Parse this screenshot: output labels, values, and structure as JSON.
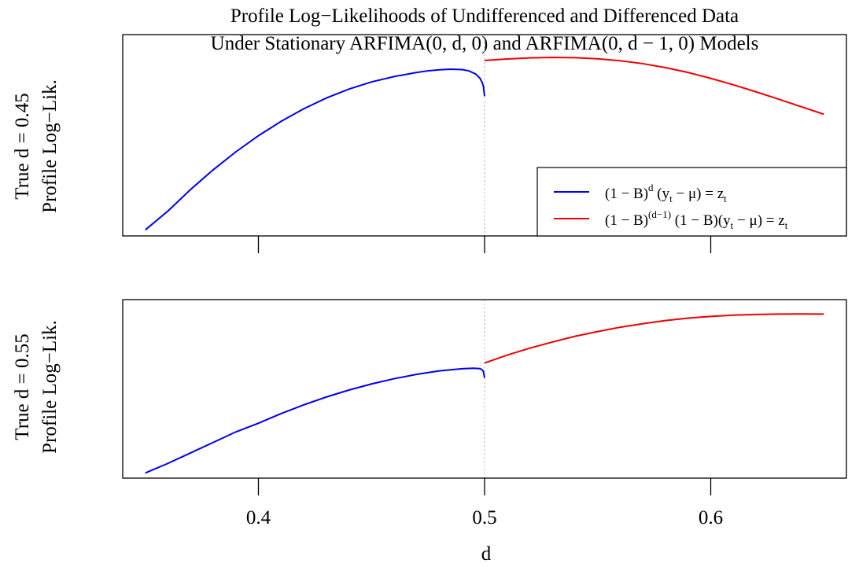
{
  "title": {
    "line1": "Profile Log−Likelihoods of Undifferenced and Differenced Data",
    "line2": "Under Stationary ARFIMA(0, d, 0) and ARFIMA(0, d − 1, 0) Models"
  },
  "colors": {
    "blue": "#0000ee",
    "red": "#ee0000",
    "divider": "#b0b0b0",
    "axis": "#000000"
  },
  "legend": {
    "blue_label": "(1 − B)^d (y_t − μ) = z_t",
    "red_label": "(1 − B)^(d−1) (1 − B)(y_t − μ) = z_t",
    "parts": {
      "blue": {
        "a": "(1 − B)",
        "sup": "d",
        "b": " (y",
        "sub1": "t",
        "c": " − μ) = z",
        "sub2": "t"
      },
      "red": {
        "a": "(1 − B)",
        "sup": "(d−1)",
        "b": " (1 − B)(y",
        "sub1": "t",
        "c": " − μ) = z",
        "sub2": "t"
      }
    }
  },
  "chart_data": [
    {
      "type": "line",
      "panel": "top",
      "ylabel_line1": "True  d = 0.45",
      "ylabel_line2": "Profile Log−Lik.",
      "xlabel": "",
      "xlim": [
        0.34,
        0.66
      ],
      "ylim": [
        0,
        1
      ],
      "xticks": [
        0.4,
        0.5,
        0.6
      ],
      "show_tick_labels": false,
      "divider_x": 0.5,
      "legend_position": "bottom-right",
      "series": [
        {
          "color": "blue",
          "x": [
            0.35,
            0.36,
            0.37,
            0.38,
            0.39,
            0.4,
            0.41,
            0.42,
            0.43,
            0.44,
            0.45,
            0.46,
            0.47,
            0.475,
            0.48,
            0.485,
            0.49,
            0.493,
            0.496,
            0.498,
            0.499,
            0.4995,
            0.5
          ],
          "y": [
            0.025,
            0.13,
            0.25,
            0.36,
            0.46,
            0.55,
            0.63,
            0.7,
            0.76,
            0.81,
            0.85,
            0.88,
            0.903,
            0.912,
            0.918,
            0.921,
            0.919,
            0.912,
            0.895,
            0.87,
            0.845,
            0.825,
            0.77
          ]
        },
        {
          "color": "red",
          "x": [
            0.5,
            0.51,
            0.52,
            0.53,
            0.54,
            0.55,
            0.56,
            0.57,
            0.58,
            0.59,
            0.6,
            0.61,
            0.62,
            0.63,
            0.64,
            0.65
          ],
          "y": [
            0.97,
            0.978,
            0.984,
            0.987,
            0.985,
            0.979,
            0.968,
            0.952,
            0.93,
            0.903,
            0.87,
            0.834,
            0.795,
            0.754,
            0.712,
            0.67
          ]
        }
      ]
    },
    {
      "type": "line",
      "panel": "bottom",
      "ylabel_line1": "True  d = 0.55",
      "ylabel_line2": "Profile Log−Lik.",
      "xlabel": "d",
      "xlim": [
        0.34,
        0.66
      ],
      "ylim": [
        0,
        1
      ],
      "xticks": [
        0.4,
        0.5,
        0.6
      ],
      "xtick_labels": [
        "0.4",
        "0.5",
        "0.6"
      ],
      "show_tick_labels": true,
      "divider_x": 0.5,
      "series": [
        {
          "color": "blue",
          "x": [
            0.35,
            0.36,
            0.37,
            0.38,
            0.39,
            0.4,
            0.41,
            0.42,
            0.43,
            0.44,
            0.45,
            0.46,
            0.47,
            0.48,
            0.49,
            0.495,
            0.498,
            0.499,
            0.4995,
            0.5
          ],
          "y": [
            0.025,
            0.08,
            0.14,
            0.2,
            0.26,
            0.31,
            0.365,
            0.415,
            0.46,
            0.5,
            0.535,
            0.565,
            0.59,
            0.61,
            0.622,
            0.625,
            0.623,
            0.615,
            0.605,
            0.57
          ]
        },
        {
          "color": "red",
          "x": [
            0.5,
            0.51,
            0.52,
            0.53,
            0.54,
            0.55,
            0.56,
            0.57,
            0.58,
            0.59,
            0.6,
            0.61,
            0.62,
            0.63,
            0.64,
            0.65
          ],
          "y": [
            0.655,
            0.7,
            0.74,
            0.775,
            0.808,
            0.835,
            0.86,
            0.88,
            0.898,
            0.912,
            0.922,
            0.929,
            0.933,
            0.935,
            0.936,
            0.935
          ]
        }
      ]
    }
  ]
}
